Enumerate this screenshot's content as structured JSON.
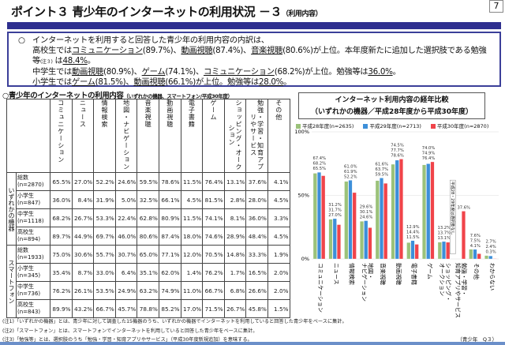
{
  "page": {
    "title": "ポイント３ 青少年のインターネットの利用状況 －３",
    "title_sub": "（利用内容）",
    "page_number": "7"
  },
  "summary": {
    "bullet": "○",
    "line1": "インターネットを利用すると回答した青少年の利用内容の内訳は、",
    "hs_pre": "高校生では",
    "hs_a": "コミュニケーション",
    "hs_a_v": "(89.7%)、",
    "hs_b": "動画視聴",
    "hs_b_v": "(87.4%)、",
    "hs_c": "音楽視聴",
    "hs_c_v": "(80.6%)が上位。本年度新たに追加した選択肢である勉強等",
    "note3": "(注３)",
    "hs_study_pre": " は",
    "hs_study": "48.4%",
    "period": "。",
    "ms_pre": "中学生では",
    "ms_a": "動画視聴",
    "ms_a_v": "(80.9%)、",
    "ms_b": "ゲーム",
    "ms_b_v": "(74.1%)、",
    "ms_c": "コミュニケーション",
    "ms_c_v": "(68.2%)が上位。勉強等は",
    "ms_study": "36.0%",
    "es_pre": "小学生では",
    "es_a": "ゲーム",
    "es_a_v": "(81.5%)、",
    "es_b": "動画視聴",
    "es_b_v": "(66.1%)が上位。勉強等は",
    "es_study": "28.0%"
  },
  "table": {
    "title": "○青少年のインターネットの利用内容",
    "title_sub": "（いずれかの機器、スマートフォン/平成30年度）",
    "columns": [
      "コミュニケーション",
      "ニュース",
      "情報検索",
      "地図・ナビゲーション",
      "音楽視聴",
      "動画視聴",
      "電子書籍",
      "ゲーム",
      "ショッピング・オークション",
      "勉強・学習・知育アプリやサービス",
      "その他"
    ],
    "groups": [
      {
        "label": "いずれかの機器",
        "rows": [
          {
            "label": "総数",
            "n": "(n=2870)",
            "values": [
              "65.5%",
              "27.0%",
              "52.2%",
              "24.6%",
              "59.5%",
              "78.6%",
              "11.5%",
              "76.4%",
              "13.1%",
              "37.6%",
              "4.1%"
            ]
          },
          {
            "label": "小学生",
            "n": "(n=847)",
            "values": [
              "36.0%",
              "8.4%",
              "31.9%",
              "5.0%",
              "32.5%",
              "66.1%",
              "4.5%",
              "81.5%",
              "2.8%",
              "28.0%",
              "4.5%"
            ]
          },
          {
            "label": "中学生",
            "n": "(n=1118)",
            "values": [
              "68.2%",
              "26.7%",
              "53.3%",
              "22.4%",
              "62.8%",
              "80.9%",
              "11.5%",
              "74.1%",
              "8.1%",
              "36.0%",
              "3.3%"
            ]
          },
          {
            "label": "高校生",
            "n": "(n=894)",
            "values": [
              "89.7%",
              "44.9%",
              "69.7%",
              "46.0%",
              "80.6%",
              "87.4%",
              "18.0%",
              "74.6%",
              "28.9%",
              "48.4%",
              "4.5%"
            ]
          }
        ]
      },
      {
        "label": "スマートフォン",
        "rows": [
          {
            "label": "総数",
            "n": "(n=1933)",
            "values": [
              "75.0%",
              "30.6%",
              "55.7%",
              "30.7%",
              "65.0%",
              "77.1%",
              "12.0%",
              "70.5%",
              "14.8%",
              "33.3%",
              "1.9%"
            ]
          },
          {
            "label": "小学生",
            "n": "(n=345)",
            "values": [
              "35.4%",
              "8.7%",
              "33.0%",
              "6.4%",
              "35.1%",
              "62.0%",
              "1.4%",
              "76.2%",
              "1.7%",
              "16.5%",
              "2.0%"
            ]
          },
          {
            "label": "中学生",
            "n": "(n=736)",
            "values": [
              "76.2%",
              "26.1%",
              "53.5%",
              "24.9%",
              "63.2%",
              "74.9%",
              "11.0%",
              "66.7%",
              "6.8%",
              "26.6%",
              "2.0%"
            ]
          },
          {
            "label": "高校生",
            "n": "(n=843)",
            "values": [
              "89.9%",
              "43.2%",
              "66.7%",
              "45.7%",
              "78.8%",
              "85.2%",
              "17.0%",
              "71.5%",
              "26.7%",
              "45.8%",
              "1.5%"
            ]
          }
        ]
      }
    ]
  },
  "notes": [
    "(注1)「いずれかの機器」とは、青少年に対して調査した15機器のうち、いずれかの機器でインターネットを利用していると回答した青少年をベースに集計。",
    "(注2)「スマートフォン」とは、スマートフォンでインターネットを利用していると回答した青少年をベースに集計。",
    "(注3)「勉強等」とは、選択肢のうち「勉強・学習・知育アプリやサービス」（平成30年度新規追加）を意味する。"
  ],
  "source": "（青少年　Q３）",
  "chart_data": {
    "type": "bar",
    "title": "インターネット利用内容の経年比較",
    "subtitle": "（いずれかの機器／平成28年度から平成30年度）",
    "categories": [
      "コミュニケーション",
      "ニュース",
      "情報検索",
      "地図・ナビゲーション",
      "音楽視聴",
      "動画視聴",
      "電子書籍",
      "ゲーム",
      "ショッピング・オークション",
      "勉強・学習・知育アプリやサービス",
      "その他",
      "わからない"
    ],
    "series": [
      {
        "name": "平成28年度(n=2635)",
        "color": "#9bc27a",
        "values": [
          67.4,
          31.2,
          61.0,
          29.6,
          61.6,
          74.5,
          12.9,
          74.0,
          13.2,
          null,
          7.6,
          2.7
        ]
      },
      {
        "name": "平成29年度(n=2713)",
        "color": "#3d8fd9",
        "values": [
          68.2,
          31.7,
          61.9,
          30.1,
          63.7,
          77.7,
          14.4,
          74.9,
          13.7,
          null,
          7.5,
          2.4
        ]
      },
      {
        "name": "平成30年度(n=2870)",
        "color": "#f0444a",
        "values": [
          65.5,
          27.0,
          52.2,
          24.6,
          59.5,
          78.6,
          11.5,
          76.4,
          13.1,
          37.6,
          4.1,
          0.3
        ]
      }
    ],
    "ylim": [
      0,
      100
    ],
    "yticks": [
      "0%",
      "50%",
      "100%"
    ],
    "annotation": "平成28・29年度は選択肢なし"
  }
}
